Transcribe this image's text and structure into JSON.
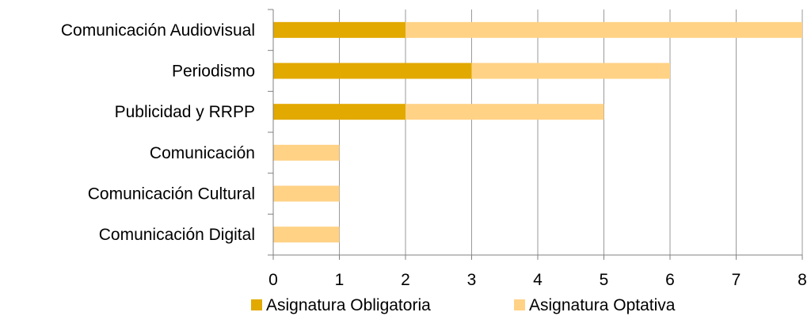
{
  "chart_data": {
    "type": "bar",
    "orientation": "horizontal",
    "stacked": true,
    "categories": [
      "Comunicación Audiovisual",
      "Periodismo",
      "Publicidad y RRPP",
      "Comunicación",
      "Comunicación Cultural",
      "Comunicación Digital"
    ],
    "series": [
      {
        "name": "Asignatura Obligatoria",
        "color": "#E2A900",
        "values": [
          2,
          3,
          2,
          0,
          0,
          0
        ]
      },
      {
        "name": "Asignatura Optativa",
        "color": "#FFD286",
        "values": [
          6,
          3,
          3,
          1,
          1,
          1
        ]
      }
    ],
    "xlim": [
      0,
      8
    ],
    "xticks": [
      "0",
      "1",
      "2",
      "3",
      "4",
      "5",
      "6",
      "7",
      "8"
    ],
    "grid": "vertical",
    "legend": "bottom"
  }
}
